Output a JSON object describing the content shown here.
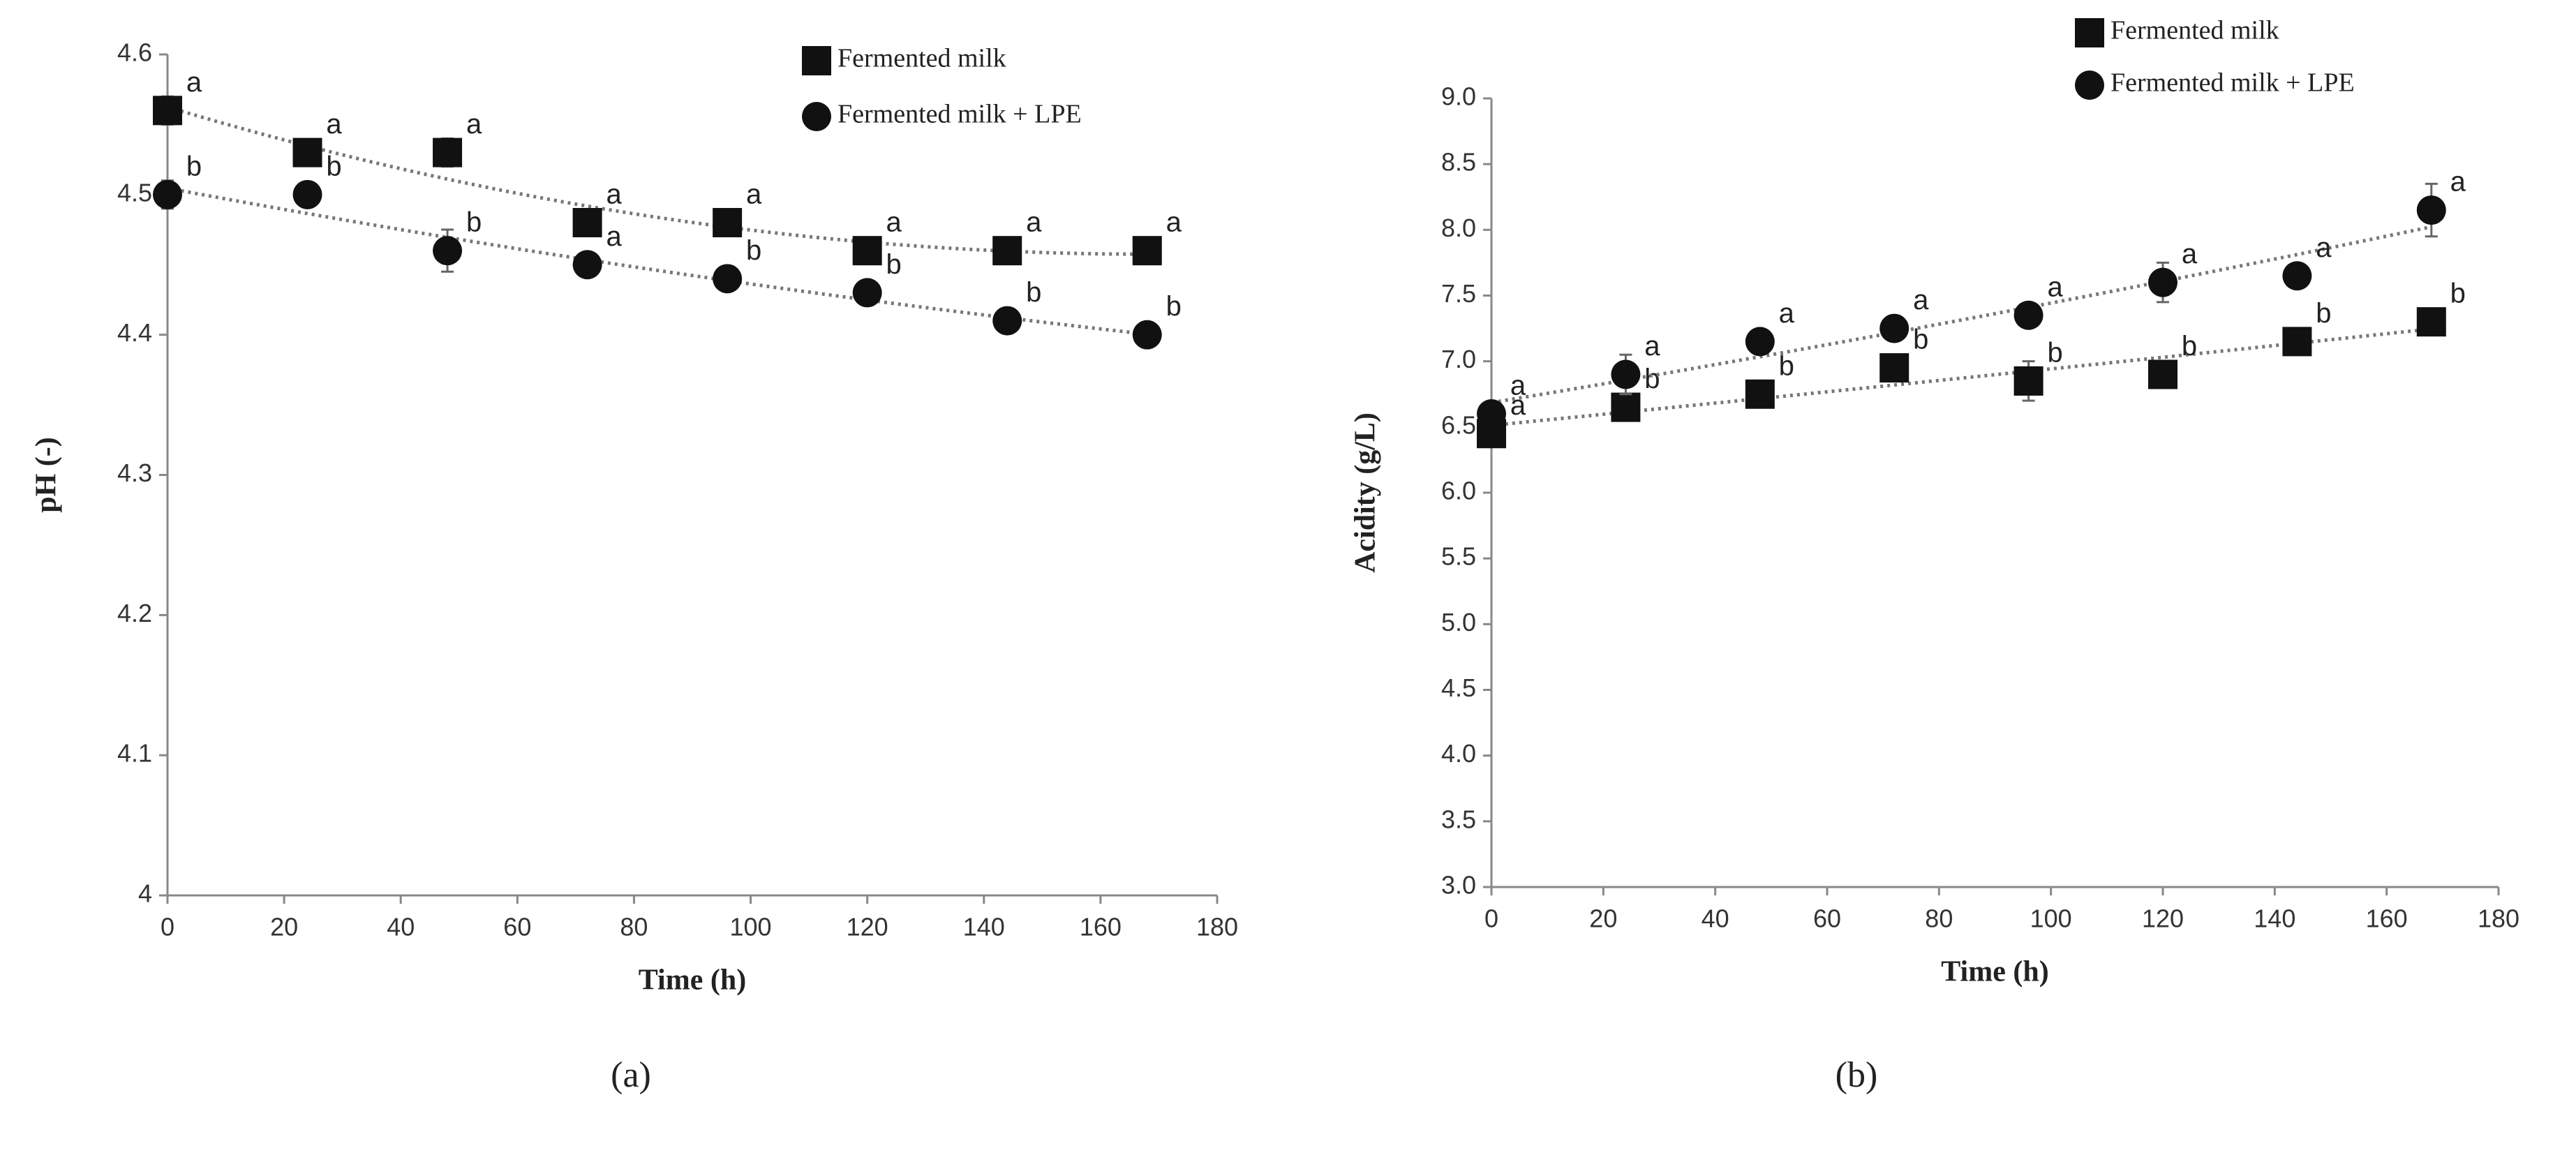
{
  "chart_data": [
    {
      "type": "scatter",
      "caption": "(a)",
      "x_label": "Time (h)",
      "y_label": "pH (-)",
      "x": [
        0,
        24,
        48,
        72,
        96,
        120,
        144,
        168
      ],
      "xlim": [
        0,
        180
      ],
      "xticks": [
        0,
        20,
        40,
        60,
        80,
        100,
        120,
        140,
        160,
        180
      ],
      "ylim": [
        4,
        4.6
      ],
      "yticks": [
        4,
        4.1,
        4.2,
        4.3,
        4.4,
        4.5,
        4.6
      ],
      "trendline": true,
      "legend": "upper right",
      "series": [
        {
          "name": "Fermented milk",
          "color": "#111111",
          "marker": "square",
          "values": [
            4.56,
            4.53,
            4.53,
            4.48,
            4.48,
            4.46,
            4.46,
            4.46
          ],
          "errors": [
            0.01,
            0.005,
            0.01,
            0.008,
            0.005,
            0.005,
            0.005,
            0.005
          ],
          "letters": [
            "a",
            "a",
            "a",
            "a",
            "a",
            "a",
            "a",
            "a"
          ]
        },
        {
          "name": "Fermented milk + LPE",
          "color": "#111111",
          "marker": "circle",
          "values": [
            4.5,
            4.5,
            4.46,
            4.45,
            4.44,
            4.43,
            4.41,
            4.4
          ],
          "errors": [
            0.01,
            0.005,
            0.015,
            0.005,
            0.005,
            0.005,
            0.005,
            0.005
          ],
          "letters": [
            "b",
            "b",
            "b",
            "a",
            "b",
            "b",
            "b",
            "b"
          ]
        }
      ]
    },
    {
      "type": "scatter",
      "caption": "(b)",
      "x_label": "Time (h)",
      "y_label": "Acidity (g/L)",
      "x": [
        0,
        24,
        48,
        72,
        96,
        120,
        144,
        168
      ],
      "xlim": [
        0,
        180
      ],
      "xticks": [
        0,
        20,
        40,
        60,
        80,
        100,
        120,
        140,
        160,
        180
      ],
      "ylim": [
        3,
        9
      ],
      "yticks": [
        {
          "value": 3,
          "label": "3.0"
        },
        3.5,
        {
          "value": 4,
          "label": "4.0"
        },
        4.5,
        {
          "value": 5,
          "label": "5.0"
        },
        5.5,
        {
          "value": 6,
          "label": "6.0"
        },
        6.5,
        {
          "value": 7,
          "label": "7.0"
        },
        7.5,
        {
          "value": 8,
          "label": "8.0"
        },
        8.5,
        {
          "value": 9,
          "label": "9.0"
        }
      ],
      "trendline": true,
      "legend": "upper right",
      "series": [
        {
          "name": "Fermented milk",
          "color": "#111111",
          "marker": "square",
          "values": [
            6.45,
            6.65,
            6.75,
            6.95,
            6.85,
            6.9,
            7.15,
            7.3
          ],
          "errors": [
            0.05,
            0.05,
            0.05,
            0.05,
            0.15,
            0.05,
            0.05,
            0.05
          ],
          "letters": [
            "a",
            "b",
            "b",
            "b",
            "b",
            "b",
            "b",
            "b"
          ]
        },
        {
          "name": "Fermented milk + LPE",
          "color": "#111111",
          "marker": "circle",
          "values": [
            6.6,
            6.9,
            7.15,
            7.25,
            7.35,
            7.6,
            7.65,
            8.15
          ],
          "errors": [
            0.05,
            0.15,
            0.05,
            0.05,
            0.05,
            0.15,
            0.05,
            0.2
          ],
          "letters": [
            "a",
            "a",
            "a",
            "a",
            "a",
            "a",
            "a",
            "a"
          ]
        }
      ]
    }
  ]
}
